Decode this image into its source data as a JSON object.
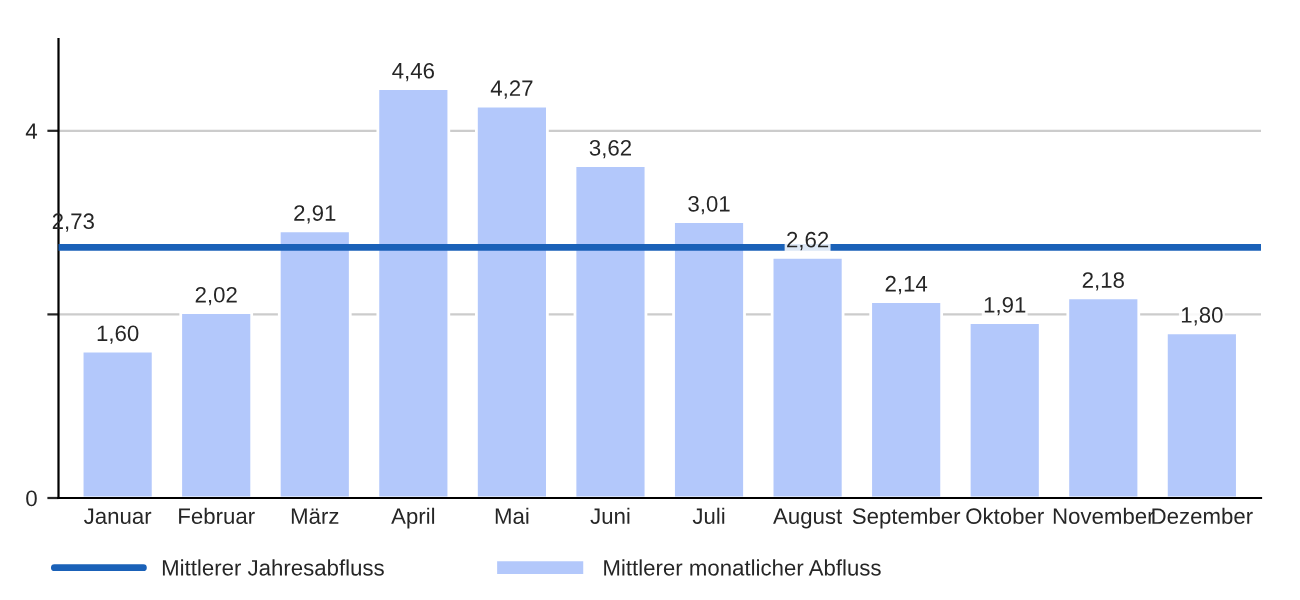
{
  "chart_data": {
    "type": "bar",
    "categories": [
      "Januar",
      "Februar",
      "März",
      "April",
      "Mai",
      "Juni",
      "Juli",
      "August",
      "September",
      "Oktober",
      "November",
      "Dezember"
    ],
    "series": [
      {
        "name": "Mittlerer monatlicher Abfluss",
        "color": "#b3c8fb",
        "values": [
          1.6,
          2.02,
          2.91,
          4.46,
          4.27,
          3.62,
          3.01,
          2.62,
          2.14,
          1.91,
          2.18,
          1.8
        ],
        "value_labels": [
          "1,60",
          "2,02",
          "2,91",
          "4,46",
          "4,27",
          "3,62",
          "3,01",
          "2,62",
          "2,14",
          "1,91",
          "2,18",
          "1,80"
        ]
      }
    ],
    "ref_lines": [
      {
        "axis": "y",
        "value": 2.73,
        "label": "Mittlerer Jahresabfluss",
        "color": "#1a61b8"
      }
    ],
    "annotations": [
      {
        "text": "2,73",
        "y": 2.73
      }
    ],
    "ylim": [
      0,
      5
    ],
    "yticks": [
      0,
      {
        "value": 2,
        "label": null
      },
      4
    ],
    "grid": "y",
    "legend": "bottom"
  }
}
